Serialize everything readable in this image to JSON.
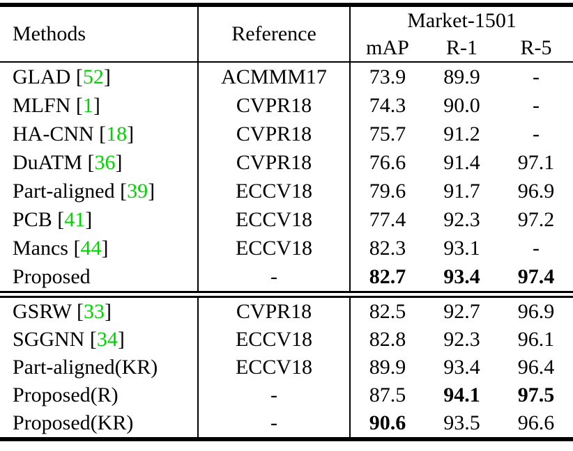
{
  "table": {
    "header": {
      "methods": "Methods",
      "reference": "Reference",
      "dataset": "Market-1501",
      "metrics": [
        "mAP",
        "R-1",
        "R-5"
      ]
    },
    "colors": {
      "citation_green": "#00d400",
      "text_black": "#000000",
      "background": "#ffffff"
    },
    "sections": [
      {
        "rows": [
          {
            "method": "GLAD",
            "cite": "52",
            "reference": "ACMMM17",
            "values": [
              {
                "v": "73.9",
                "b": false
              },
              {
                "v": "89.9",
                "b": false
              },
              {
                "v": "-",
                "b": false
              }
            ]
          },
          {
            "method": "MLFN",
            "cite": "1",
            "reference": "CVPR18",
            "values": [
              {
                "v": "74.3",
                "b": false
              },
              {
                "v": "90.0",
                "b": false
              },
              {
                "v": "-",
                "b": false
              }
            ]
          },
          {
            "method": "HA-CNN",
            "cite": "18",
            "reference": "CVPR18",
            "values": [
              {
                "v": "75.7",
                "b": false
              },
              {
                "v": "91.2",
                "b": false
              },
              {
                "v": "-",
                "b": false
              }
            ]
          },
          {
            "method": "DuATM",
            "cite": "36",
            "reference": "CVPR18",
            "values": [
              {
                "v": "76.6",
                "b": false
              },
              {
                "v": "91.4",
                "b": false
              },
              {
                "v": "97.1",
                "b": false
              }
            ]
          },
          {
            "method": "Part-aligned",
            "cite": "39",
            "reference": "ECCV18",
            "values": [
              {
                "v": "79.6",
                "b": false
              },
              {
                "v": "91.7",
                "b": false
              },
              {
                "v": "96.9",
                "b": false
              }
            ]
          },
          {
            "method": "PCB",
            "cite": "41",
            "reference": "ECCV18",
            "values": [
              {
                "v": "77.4",
                "b": false
              },
              {
                "v": "92.3",
                "b": false
              },
              {
                "v": "97.2",
                "b": false
              }
            ]
          },
          {
            "method": "Mancs",
            "cite": "44",
            "reference": "ECCV18",
            "values": [
              {
                "v": "82.3",
                "b": false
              },
              {
                "v": "93.1",
                "b": false
              },
              {
                "v": "-",
                "b": false
              }
            ]
          },
          {
            "method": "Proposed",
            "cite": null,
            "reference": "-",
            "values": [
              {
                "v": "82.7",
                "b": true
              },
              {
                "v": "93.4",
                "b": true
              },
              {
                "v": "97.4",
                "b": true
              }
            ]
          }
        ]
      },
      {
        "rows": [
          {
            "method": "GSRW",
            "cite": "33",
            "reference": "CVPR18",
            "values": [
              {
                "v": "82.5",
                "b": false
              },
              {
                "v": "92.7",
                "b": false
              },
              {
                "v": "96.9",
                "b": false
              }
            ]
          },
          {
            "method": "SGGNN",
            "cite": "34",
            "reference": "ECCV18",
            "values": [
              {
                "v": "82.8",
                "b": false
              },
              {
                "v": "92.3",
                "b": false
              },
              {
                "v": "96.1",
                "b": false
              }
            ]
          },
          {
            "method": "Part-aligned(KR)",
            "cite": null,
            "reference": "ECCV18",
            "values": [
              {
                "v": "89.9",
                "b": false
              },
              {
                "v": "93.4",
                "b": false
              },
              {
                "v": "96.4",
                "b": false
              }
            ]
          },
          {
            "method": "Proposed(R)",
            "cite": null,
            "reference": "-",
            "values": [
              {
                "v": "87.5",
                "b": false
              },
              {
                "v": "94.1",
                "b": true
              },
              {
                "v": "97.5",
                "b": true
              }
            ]
          },
          {
            "method": "Proposed(KR)",
            "cite": null,
            "reference": "-",
            "values": [
              {
                "v": "90.6",
                "b": true
              },
              {
                "v": "93.5",
                "b": false
              },
              {
                "v": "96.6",
                "b": false
              }
            ]
          }
        ]
      }
    ]
  }
}
